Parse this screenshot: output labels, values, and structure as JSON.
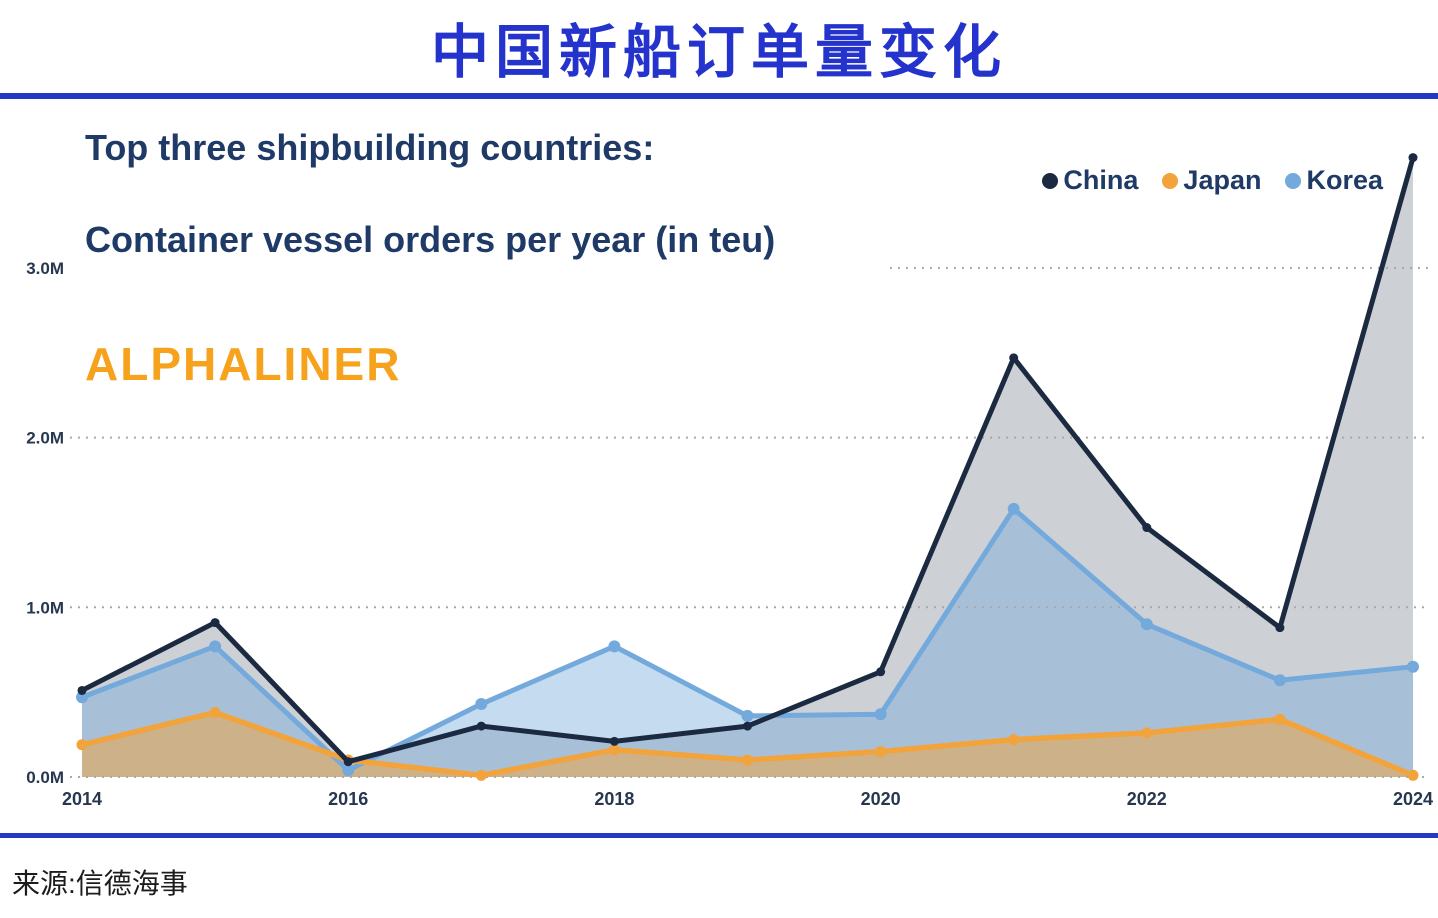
{
  "page": {
    "title": "中国新船订单量变化",
    "source": "来源:信德海事",
    "title_color": "#2533cd",
    "rule_color": "#2438c4"
  },
  "chart_data": {
    "type": "area",
    "title": "Top three shipbuilding countries:",
    "subtitle": "Container vessel orders per year (in teu)",
    "watermark": "ALPHALINER",
    "watermark_color": "#f6a21d",
    "unit": "teu (millions)",
    "x": [
      2014,
      2015,
      2016,
      2017,
      2018,
      2019,
      2020,
      2021,
      2022,
      2023,
      2024
    ],
    "x_tick_labels": [
      "2014",
      "2016",
      "2018",
      "2020",
      "2022",
      "2024"
    ],
    "y_ticks": [
      {
        "label": "0.0M",
        "value": 0
      },
      {
        "label": "1.0M",
        "value": 1
      },
      {
        "label": "2.0M",
        "value": 2
      },
      {
        "label": "3.0M",
        "value": 3,
        "grid_shortened": true
      }
    ],
    "ylim": [
      0,
      3.8
    ],
    "grid": "dotted-horizontal",
    "legend_position": "top-right",
    "series": [
      {
        "name": "China",
        "color": "#1b2a41",
        "fill_opacity": 0.22,
        "values": [
          0.51,
          0.91,
          0.09,
          0.3,
          0.21,
          0.3,
          0.62,
          2.47,
          1.47,
          0.88,
          3.65
        ]
      },
      {
        "name": "Japan",
        "color": "#f2a33c",
        "fill_opacity": 0.5,
        "values": [
          0.19,
          0.38,
          0.1,
          0.01,
          0.16,
          0.1,
          0.15,
          0.22,
          0.26,
          0.34,
          0.01
        ]
      },
      {
        "name": "Korea",
        "color": "#74a9dc",
        "fill_opacity": 0.42,
        "values": [
          0.47,
          0.77,
          0.04,
          0.43,
          0.77,
          0.36,
          0.37,
          1.58,
          0.9,
          0.57,
          0.65
        ]
      }
    ],
    "axis_text_color": "#26374f",
    "grid_color": "#a8a8a8"
  }
}
